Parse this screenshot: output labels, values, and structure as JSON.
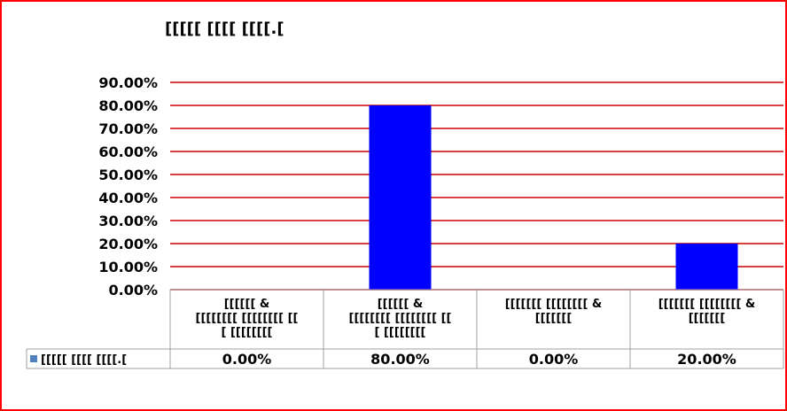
{
  "chart_data": {
    "type": "bar",
    "title": "[[[[[ [[[[ [[[[.[",
    "categories": [
      [
        "[[[[[[ &",
        "[[[[[[[[ [[[[[[[[ [[",
        "[ [[[[[[[["
      ],
      [
        "[[[[[[ &",
        "[[[[[[[[ [[[[[[[[ [[",
        "[ [[[[[[[["
      ],
      [
        "[[[[[[[ [[[[[[[[ &",
        "[[[[[[["
      ],
      [
        "[[[[[[[ [[[[[[[[ &",
        "[[[[[[["
      ]
    ],
    "series": [
      {
        "name": "[[[[[ [[[[ [[[[.[",
        "values": [
          0,
          80,
          0,
          20
        ]
      }
    ],
    "value_labels": [
      "0.00%",
      "80.00%",
      "0.00%",
      "20.00%"
    ],
    "y_ticks": [
      "0.00%",
      "10.00%",
      "20.00%",
      "30.00%",
      "40.00%",
      "50.00%",
      "60.00%",
      "70.00%",
      "80.00%",
      "90.00%"
    ],
    "ylim": [
      0,
      90
    ],
    "grid": true,
    "data_table": true,
    "colors": {
      "bar": "#0000ff",
      "grid": "#cc0000",
      "frame": "#ff0000",
      "table_border": "#a0a0a0",
      "legend_key": "#4f81bd"
    }
  }
}
